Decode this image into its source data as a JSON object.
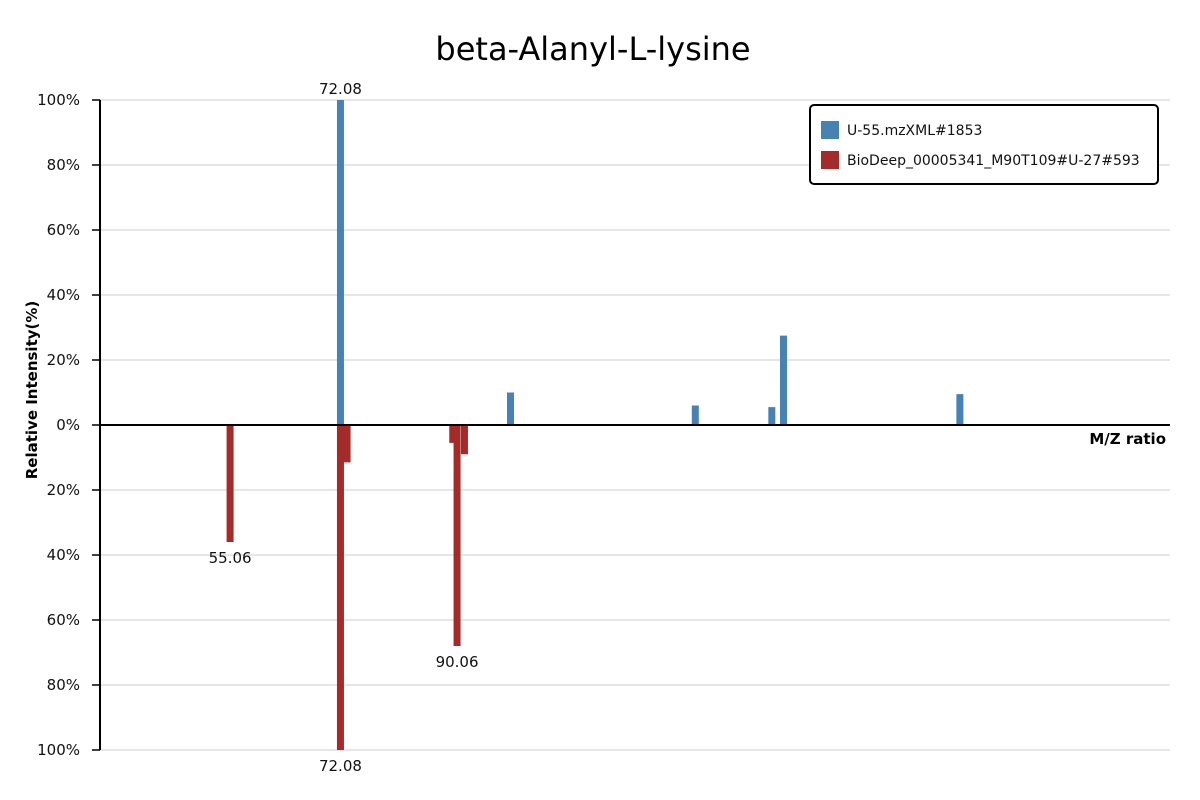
{
  "chart_data": {
    "type": "bar",
    "title": "beta-Alanyl-L-lysine",
    "xlabel": "M/Z ratio",
    "ylabel": "Relative Intensity(%)",
    "xlim": [
      35,
      200
    ],
    "ylim": [
      -100,
      100
    ],
    "y_ticks": [
      {
        "value": 100,
        "label": "100%"
      },
      {
        "value": 80,
        "label": "80%"
      },
      {
        "value": 60,
        "label": "60%"
      },
      {
        "value": 40,
        "label": "40%"
      },
      {
        "value": 20,
        "label": "20%"
      },
      {
        "value": 0,
        "label": "0%"
      },
      {
        "value": -20,
        "label": "20%"
      },
      {
        "value": -40,
        "label": "40%"
      },
      {
        "value": -60,
        "label": "60%"
      },
      {
        "value": -80,
        "label": "80%"
      },
      {
        "value": -100,
        "label": "100%"
      }
    ],
    "grid": true,
    "legend_position": "top-right",
    "series": [
      {
        "name": "U-55.mzXML#1853",
        "color": "#4682b4",
        "direction": "up",
        "peaks": [
          {
            "mz": 72.08,
            "intensity": 100,
            "label": "72.08"
          },
          {
            "mz": 98.3,
            "intensity": 10
          },
          {
            "mz": 126.8,
            "intensity": 6
          },
          {
            "mz": 138.6,
            "intensity": 5.5
          },
          {
            "mz": 140.4,
            "intensity": 27.5
          },
          {
            "mz": 167.6,
            "intensity": 9.5
          }
        ]
      },
      {
        "name": "BioDeep_00005341_M90T109#U-27#593",
        "color": "#a52a2a",
        "direction": "down",
        "peaks": [
          {
            "mz": 55.06,
            "intensity": 36,
            "label": "55.06"
          },
          {
            "mz": 72.08,
            "intensity": 100,
            "label": "72.08"
          },
          {
            "mz": 73.1,
            "intensity": 11.5
          },
          {
            "mz": 89.4,
            "intensity": 5.5
          },
          {
            "mz": 90.06,
            "intensity": 68,
            "label": "90.06"
          },
          {
            "mz": 91.2,
            "intensity": 9
          }
        ]
      }
    ]
  }
}
